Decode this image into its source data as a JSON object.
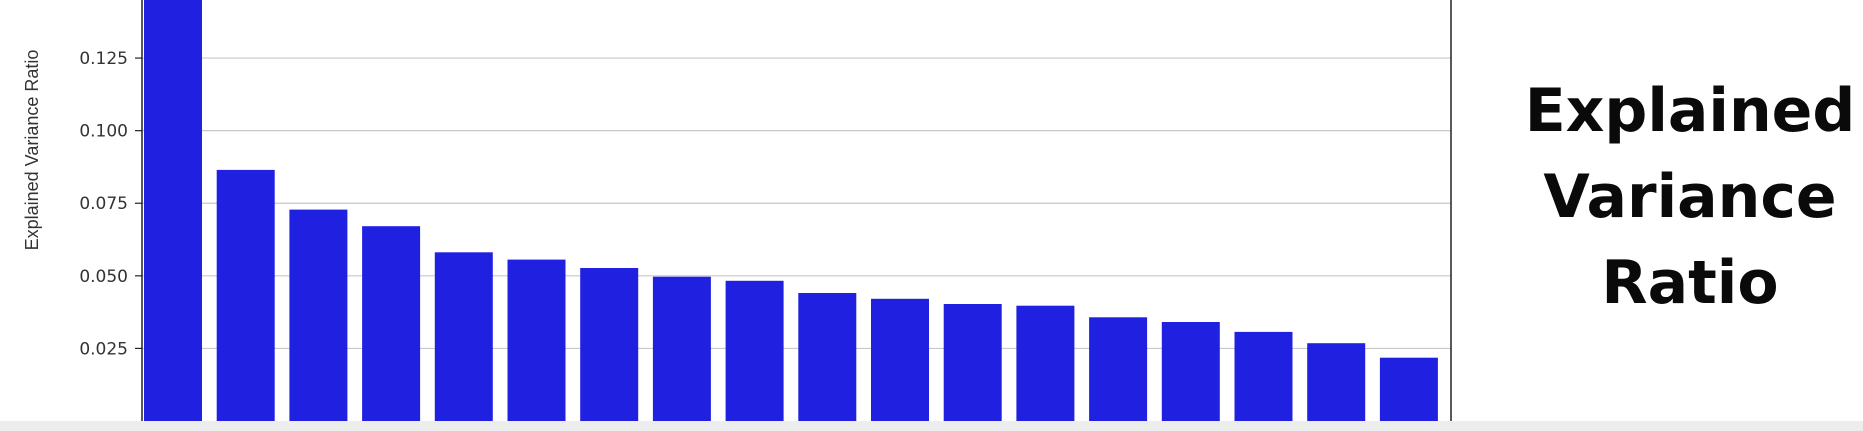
{
  "chart_data": {
    "type": "bar",
    "ylabel": "Explained Variance Ratio",
    "xlabel": "",
    "values": [
      0.145,
      0.0865,
      0.0728,
      0.0671,
      0.0581,
      0.0556,
      0.0527,
      0.0497,
      0.0483,
      0.0441,
      0.0421,
      0.0403,
      0.0397,
      0.0357,
      0.0341,
      0.0307,
      0.0268,
      0.0218
    ],
    "ylim": [
      0,
      0.145
    ],
    "yticks": [
      "0.025",
      "0.050",
      "0.075",
      "0.100",
      "0.125"
    ],
    "ytick_values": [
      0.025,
      0.05,
      0.075,
      0.1,
      0.125
    ],
    "grid": "horizontal",
    "bar_color": "#2020e0",
    "axis_color": "#222222",
    "grid_color": "#c8c8c8"
  },
  "title_lines": [
    "Explained",
    "Variance",
    "Ratio"
  ]
}
